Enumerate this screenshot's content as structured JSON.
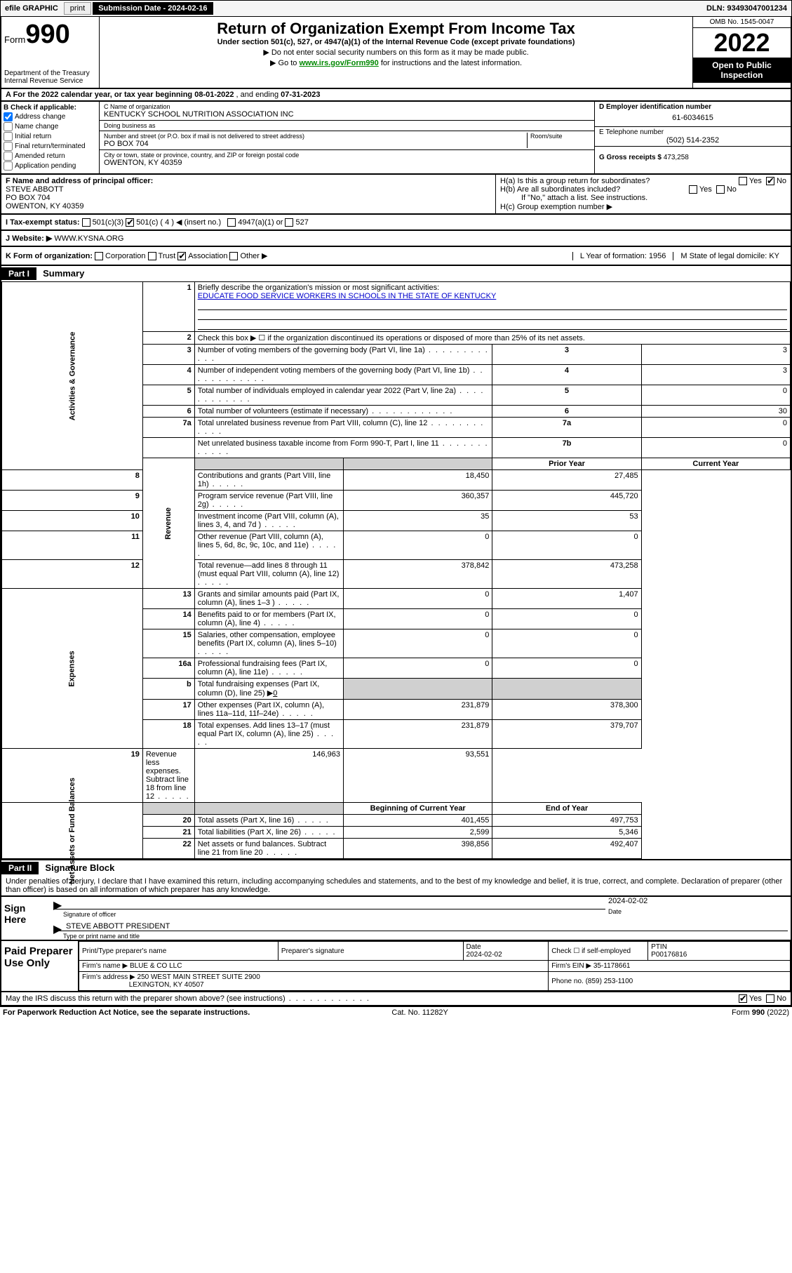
{
  "topbar": {
    "efile": "efile GRAPHIC",
    "print": "print",
    "sub_label": "Submission Date - 2024-02-16",
    "dln": "DLN: 93493047001234"
  },
  "header": {
    "form_word": "Form",
    "form_num": "990",
    "dept": "Department of the Treasury",
    "irs": "Internal Revenue Service",
    "title": "Return of Organization Exempt From Income Tax",
    "subtitle": "Under section 501(c), 527, or 4947(a)(1) of the Internal Revenue Code (except private foundations)",
    "note1": "▶ Do not enter social security numbers on this form as it may be made public.",
    "note2_pre": "▶ Go to ",
    "note2_link": "www.irs.gov/Form990",
    "note2_post": " for instructions and the latest information.",
    "omb": "OMB No. 1545-0047",
    "year": "2022",
    "open": "Open to Public Inspection"
  },
  "rowA": {
    "text_pre": "A For the 2022 calendar year, or tax year beginning ",
    "begin": "08-01-2022",
    "mid": " , and ending ",
    "end": "07-31-2023"
  },
  "B": {
    "label": "B Check if applicable:",
    "addr_change": "Address change",
    "name_change": "Name change",
    "initial": "Initial return",
    "final": "Final return/terminated",
    "amended": "Amended return",
    "app_pending": "Application pending"
  },
  "C": {
    "name_label": "C Name of organization",
    "name": "KENTUCKY SCHOOL NUTRITION ASSOCIATION INC",
    "dba_label": "Doing business as",
    "dba": "",
    "street_label": "Number and street (or P.O. box if mail is not delivered to street address)",
    "room_label": "Room/suite",
    "street": "PO BOX 704",
    "city_label": "City or town, state or province, country, and ZIP or foreign postal code",
    "city": "OWENTON, KY  40359"
  },
  "D": {
    "ein_label": "D Employer identification number",
    "ein": "61-6034615",
    "tel_label": "E Telephone number",
    "tel": "(502) 514-2352",
    "gross_label": "G Gross receipts $",
    "gross": "473,258"
  },
  "F": {
    "label": "F Name and address of principal officer:",
    "name": "STEVE ABBOTT",
    "addr1": "PO BOX 704",
    "addr2": "OWENTON, KY  40359"
  },
  "H": {
    "a": "H(a)  Is this a group return for subordinates?",
    "b": "H(b)  Are all subordinates included?",
    "b_note": "If \"No,\" attach a list. See instructions.",
    "c": "H(c)  Group exemption number ▶",
    "yes": "Yes",
    "no": "No"
  },
  "I": {
    "label": "I   Tax-exempt status:",
    "o1": "501(c)(3)",
    "o2": "501(c) ( 4 ) ◀ (insert no.)",
    "o3": "4947(a)(1) or",
    "o4": "527"
  },
  "J": {
    "label": "J   Website: ▶",
    "val": "WWW.KYSNA.ORG"
  },
  "K": {
    "label": "K Form of organization:",
    "corp": "Corporation",
    "trust": "Trust",
    "assoc": "Association",
    "other": "Other ▶",
    "L": "L Year of formation: 1956",
    "M": "M State of legal domicile: KY"
  },
  "part1": {
    "hdr": "Part I",
    "title": "Summary",
    "l1": "Briefly describe the organization's mission or most significant activities:",
    "mission": "EDUCATE FOOD SERVICE WORKERS IN SCHOOLS IN THE STATE OF KENTUCKY",
    "l2": "Check this box ▶ ☐  if the organization discontinued its operations or disposed of more than 25% of its net assets.",
    "side_ag": "Activities & Governance",
    "side_rev": "Revenue",
    "side_exp": "Expenses",
    "side_nab": "Net Assets or Fund Balances",
    "rows_ag": [
      {
        "n": "3",
        "d": "Number of voting members of the governing body (Part VI, line 1a)",
        "b": "3",
        "v": "3"
      },
      {
        "n": "4",
        "d": "Number of independent voting members of the governing body (Part VI, line 1b)",
        "b": "4",
        "v": "3"
      },
      {
        "n": "5",
        "d": "Total number of individuals employed in calendar year 2022 (Part V, line 2a)",
        "b": "5",
        "v": "0"
      },
      {
        "n": "6",
        "d": "Total number of volunteers (estimate if necessary)",
        "b": "6",
        "v": "30"
      },
      {
        "n": "7a",
        "d": "Total unrelated business revenue from Part VIII, column (C), line 12",
        "b": "7a",
        "v": "0"
      },
      {
        "n": "",
        "d": "Net unrelated business taxable income from Form 990-T, Part I, line 11",
        "b": "7b",
        "v": "0"
      }
    ],
    "hdr_prior": "Prior Year",
    "hdr_curr": "Current Year",
    "rows_rev": [
      {
        "n": "8",
        "d": "Contributions and grants (Part VIII, line 1h)",
        "p": "18,450",
        "c": "27,485"
      },
      {
        "n": "9",
        "d": "Program service revenue (Part VIII, line 2g)",
        "p": "360,357",
        "c": "445,720"
      },
      {
        "n": "10",
        "d": "Investment income (Part VIII, column (A), lines 3, 4, and 7d )",
        "p": "35",
        "c": "53"
      },
      {
        "n": "11",
        "d": "Other revenue (Part VIII, column (A), lines 5, 6d, 8c, 9c, 10c, and 11e)",
        "p": "0",
        "c": "0"
      },
      {
        "n": "12",
        "d": "Total revenue—add lines 8 through 11 (must equal Part VIII, column (A), line 12)",
        "p": "378,842",
        "c": "473,258"
      }
    ],
    "rows_exp": [
      {
        "n": "13",
        "d": "Grants and similar amounts paid (Part IX, column (A), lines 1–3 )",
        "p": "0",
        "c": "1,407"
      },
      {
        "n": "14",
        "d": "Benefits paid to or for members (Part IX, column (A), line 4)",
        "p": "0",
        "c": "0"
      },
      {
        "n": "15",
        "d": "Salaries, other compensation, employee benefits (Part IX, column (A), lines 5–10)",
        "p": "0",
        "c": "0"
      },
      {
        "n": "16a",
        "d": "Professional fundraising fees (Part IX, column (A), line 11e)",
        "p": "0",
        "c": "0"
      }
    ],
    "row_16b_n": "b",
    "row_16b": "Total fundraising expenses (Part IX, column (D), line 25) ▶",
    "row_16b_v": "0",
    "rows_exp2": [
      {
        "n": "17",
        "d": "Other expenses (Part IX, column (A), lines 11a–11d, 11f–24e)",
        "p": "231,879",
        "c": "378,300"
      },
      {
        "n": "18",
        "d": "Total expenses. Add lines 13–17 (must equal Part IX, column (A), line 25)",
        "p": "231,879",
        "c": "379,707"
      },
      {
        "n": "19",
        "d": "Revenue less expenses. Subtract line 18 from line 12",
        "p": "146,963",
        "c": "93,551"
      }
    ],
    "hdr_bcy": "Beginning of Current Year",
    "hdr_eoy": "End of Year",
    "rows_nab": [
      {
        "n": "20",
        "d": "Total assets (Part X, line 16)",
        "p": "401,455",
        "c": "497,753"
      },
      {
        "n": "21",
        "d": "Total liabilities (Part X, line 26)",
        "p": "2,599",
        "c": "5,346"
      },
      {
        "n": "22",
        "d": "Net assets or fund balances. Subtract line 21 from line 20",
        "p": "398,856",
        "c": "492,407"
      }
    ]
  },
  "part2": {
    "hdr": "Part II",
    "title": "Signature Block",
    "decl": "Under penalties of perjury, I declare that I have examined this return, including accompanying schedules and statements, and to the best of my knowledge and belief, it is true, correct, and complete. Declaration of preparer (other than officer) is based on all information of which preparer has any knowledge.",
    "sign_here": "Sign Here",
    "sig_officer": "Signature of officer",
    "date_label": "Date",
    "sig_date": "2024-02-02",
    "officer_name": "STEVE ABBOTT PRESIDENT",
    "type_name": "Type or print name and title",
    "paid": "Paid Preparer Use Only",
    "pp_name_l": "Print/Type preparer's name",
    "pp_sig_l": "Preparer's signature",
    "pp_date_l": "Date",
    "pp_date": "2024-02-02",
    "pp_check": "Check ☐ if self-employed",
    "ptin_l": "PTIN",
    "ptin": "P00176816",
    "firm_name_l": "Firm's name    ▶",
    "firm_name": "BLUE & CO LLC",
    "firm_ein_l": "Firm's EIN ▶",
    "firm_ein": "35-1178661",
    "firm_addr_l": "Firm's address ▶",
    "firm_addr1": "250 WEST MAIN STREET SUITE 2900",
    "firm_addr2": "LEXINGTON, KY  40507",
    "phone_l": "Phone no.",
    "phone": "(859) 253-1100",
    "may_irs": "May the IRS discuss this return with the preparer shown above? (see instructions)",
    "paperwork": "For Paperwork Reduction Act Notice, see the separate instructions.",
    "cat": "Cat. No. 11282Y",
    "form_foot": "Form 990 (2022)"
  }
}
